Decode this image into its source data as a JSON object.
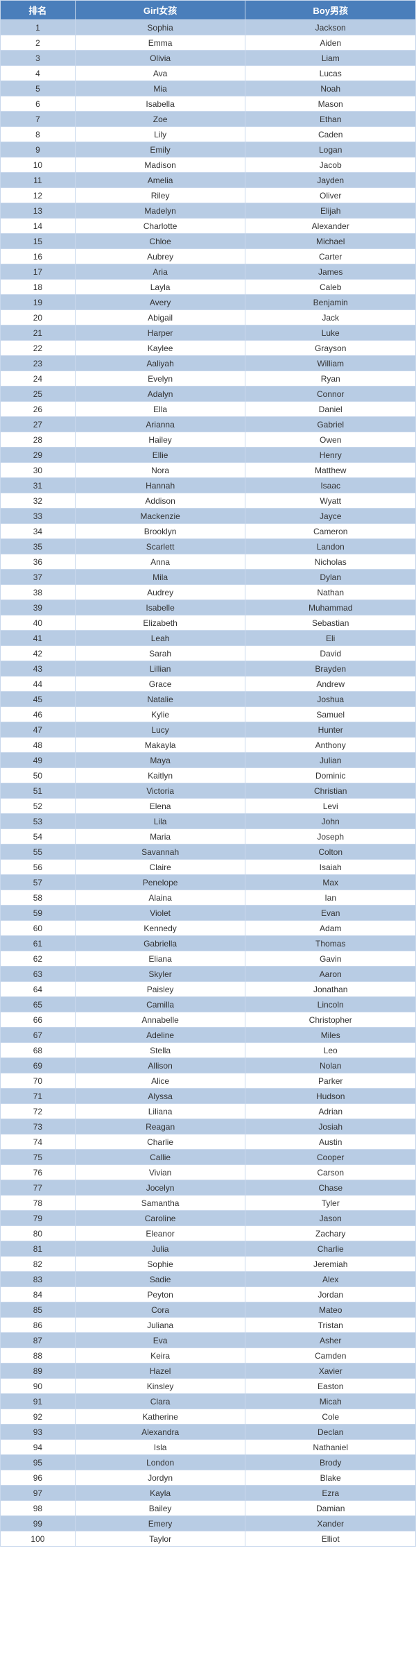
{
  "table": {
    "columns": [
      "排名",
      "Girl女孩",
      "Boy男孩"
    ],
    "header_bg": "#4a7ebb",
    "header_fg": "#ffffff",
    "row_odd_bg": "#b8cce4",
    "row_even_bg": "#ffffff",
    "border_color": "#c9d8ec",
    "rows": [
      {
        "rank": "1",
        "girl": "Sophia",
        "boy": "Jackson"
      },
      {
        "rank": "2",
        "girl": "Emma",
        "boy": "Aiden"
      },
      {
        "rank": "3",
        "girl": "Olivia",
        "boy": "Liam"
      },
      {
        "rank": "4",
        "girl": "Ava",
        "boy": "Lucas"
      },
      {
        "rank": "5",
        "girl": "Mia",
        "boy": "Noah"
      },
      {
        "rank": "6",
        "girl": "Isabella",
        "boy": "Mason"
      },
      {
        "rank": "7",
        "girl": "Zoe",
        "boy": "Ethan"
      },
      {
        "rank": "8",
        "girl": "Lily",
        "boy": "Caden"
      },
      {
        "rank": "9",
        "girl": "Emily",
        "boy": "Logan"
      },
      {
        "rank": "10",
        "girl": "Madison",
        "boy": "Jacob"
      },
      {
        "rank": "11",
        "girl": "Amelia",
        "boy": "Jayden"
      },
      {
        "rank": "12",
        "girl": "Riley",
        "boy": "Oliver"
      },
      {
        "rank": "13",
        "girl": "Madelyn",
        "boy": "Elijah"
      },
      {
        "rank": "14",
        "girl": "Charlotte",
        "boy": "Alexander"
      },
      {
        "rank": "15",
        "girl": "Chloe",
        "boy": "Michael"
      },
      {
        "rank": "16",
        "girl": "Aubrey",
        "boy": "Carter"
      },
      {
        "rank": "17",
        "girl": "Aria",
        "boy": "James"
      },
      {
        "rank": "18",
        "girl": "Layla",
        "boy": "Caleb"
      },
      {
        "rank": "19",
        "girl": "Avery",
        "boy": "Benjamin"
      },
      {
        "rank": "20",
        "girl": "Abigail",
        "boy": "Jack"
      },
      {
        "rank": "21",
        "girl": "Harper",
        "boy": "Luke"
      },
      {
        "rank": "22",
        "girl": "Kaylee",
        "boy": "Grayson"
      },
      {
        "rank": "23",
        "girl": "Aaliyah",
        "boy": "William"
      },
      {
        "rank": "24",
        "girl": "Evelyn",
        "boy": "Ryan"
      },
      {
        "rank": "25",
        "girl": "Adalyn",
        "boy": "Connor"
      },
      {
        "rank": "26",
        "girl": "Ella",
        "boy": "Daniel"
      },
      {
        "rank": "27",
        "girl": "Arianna",
        "boy": "Gabriel"
      },
      {
        "rank": "28",
        "girl": "Hailey",
        "boy": "Owen"
      },
      {
        "rank": "29",
        "girl": "Ellie",
        "boy": "Henry"
      },
      {
        "rank": "30",
        "girl": "Nora",
        "boy": "Matthew"
      },
      {
        "rank": "31",
        "girl": "Hannah",
        "boy": "Isaac"
      },
      {
        "rank": "32",
        "girl": "Addison",
        "boy": "Wyatt"
      },
      {
        "rank": "33",
        "girl": "Mackenzie",
        "boy": "Jayce"
      },
      {
        "rank": "34",
        "girl": "Brooklyn",
        "boy": "Cameron"
      },
      {
        "rank": "35",
        "girl": "Scarlett",
        "boy": "Landon"
      },
      {
        "rank": "36",
        "girl": "Anna",
        "boy": "Nicholas"
      },
      {
        "rank": "37",
        "girl": "Mila",
        "boy": "Dylan"
      },
      {
        "rank": "38",
        "girl": "Audrey",
        "boy": "Nathan"
      },
      {
        "rank": "39",
        "girl": "Isabelle",
        "boy": "Muhammad"
      },
      {
        "rank": "40",
        "girl": "Elizabeth",
        "boy": "Sebastian"
      },
      {
        "rank": "41",
        "girl": "Leah",
        "boy": "Eli"
      },
      {
        "rank": "42",
        "girl": "Sarah",
        "boy": "David"
      },
      {
        "rank": "43",
        "girl": "Lillian",
        "boy": "Brayden"
      },
      {
        "rank": "44",
        "girl": "Grace",
        "boy": "Andrew"
      },
      {
        "rank": "45",
        "girl": "Natalie",
        "boy": "Joshua"
      },
      {
        "rank": "46",
        "girl": "Kylie",
        "boy": "Samuel"
      },
      {
        "rank": "47",
        "girl": "Lucy",
        "boy": "Hunter"
      },
      {
        "rank": "48",
        "girl": "Makayla",
        "boy": "Anthony"
      },
      {
        "rank": "49",
        "girl": "Maya",
        "boy": "Julian"
      },
      {
        "rank": "50",
        "girl": "Kaitlyn",
        "boy": "Dominic"
      },
      {
        "rank": "51",
        "girl": "Victoria",
        "boy": "Christian"
      },
      {
        "rank": "52",
        "girl": "Elena",
        "boy": "Levi"
      },
      {
        "rank": "53",
        "girl": "Lila",
        "boy": "John"
      },
      {
        "rank": "54",
        "girl": "Maria",
        "boy": "Joseph"
      },
      {
        "rank": "55",
        "girl": "Savannah",
        "boy": "Colton"
      },
      {
        "rank": "56",
        "girl": "Claire",
        "boy": "Isaiah"
      },
      {
        "rank": "57",
        "girl": "Penelope",
        "boy": "Max"
      },
      {
        "rank": "58",
        "girl": "Alaina",
        "boy": "Ian"
      },
      {
        "rank": "59",
        "girl": "Violet",
        "boy": "Evan"
      },
      {
        "rank": "60",
        "girl": "Kennedy",
        "boy": "Adam"
      },
      {
        "rank": "61",
        "girl": "Gabriella",
        "boy": "Thomas"
      },
      {
        "rank": "62",
        "girl": "Eliana",
        "boy": "Gavin"
      },
      {
        "rank": "63",
        "girl": "Skyler",
        "boy": "Aaron"
      },
      {
        "rank": "64",
        "girl": "Paisley",
        "boy": "Jonathan"
      },
      {
        "rank": "65",
        "girl": "Camilla",
        "boy": "Lincoln"
      },
      {
        "rank": "66",
        "girl": "Annabelle",
        "boy": "Christopher"
      },
      {
        "rank": "67",
        "girl": "Adeline",
        "boy": "Miles"
      },
      {
        "rank": "68",
        "girl": "Stella",
        "boy": "Leo"
      },
      {
        "rank": "69",
        "girl": "Allison",
        "boy": "Nolan"
      },
      {
        "rank": "70",
        "girl": "Alice",
        "boy": "Parker"
      },
      {
        "rank": "71",
        "girl": "Alyssa",
        "boy": "Hudson"
      },
      {
        "rank": "72",
        "girl": "Liliana",
        "boy": "Adrian"
      },
      {
        "rank": "73",
        "girl": "Reagan",
        "boy": "Josiah"
      },
      {
        "rank": "74",
        "girl": "Charlie",
        "boy": "Austin"
      },
      {
        "rank": "75",
        "girl": "Callie",
        "boy": "Cooper"
      },
      {
        "rank": "76",
        "girl": "Vivian",
        "boy": "Carson"
      },
      {
        "rank": "77",
        "girl": "Jocelyn",
        "boy": "Chase"
      },
      {
        "rank": "78",
        "girl": "Samantha",
        "boy": "Tyler"
      },
      {
        "rank": "79",
        "girl": "Caroline",
        "boy": "Jason"
      },
      {
        "rank": "80",
        "girl": "Eleanor",
        "boy": "Zachary"
      },
      {
        "rank": "81",
        "girl": "Julia",
        "boy": "Charlie"
      },
      {
        "rank": "82",
        "girl": "Sophie",
        "boy": "Jeremiah"
      },
      {
        "rank": "83",
        "girl": "Sadie",
        "boy": "Alex"
      },
      {
        "rank": "84",
        "girl": "Peyton",
        "boy": "Jordan"
      },
      {
        "rank": "85",
        "girl": "Cora",
        "boy": "Mateo"
      },
      {
        "rank": "86",
        "girl": "Juliana",
        "boy": "Tristan"
      },
      {
        "rank": "87",
        "girl": "Eva",
        "boy": "Asher"
      },
      {
        "rank": "88",
        "girl": "Keira",
        "boy": "Camden"
      },
      {
        "rank": "89",
        "girl": "Hazel",
        "boy": "Xavier"
      },
      {
        "rank": "90",
        "girl": "Kinsley",
        "boy": "Easton"
      },
      {
        "rank": "91",
        "girl": "Clara",
        "boy": "Micah"
      },
      {
        "rank": "92",
        "girl": "Katherine",
        "boy": "Cole"
      },
      {
        "rank": "93",
        "girl": "Alexandra",
        "boy": "Declan"
      },
      {
        "rank": "94",
        "girl": "Isla",
        "boy": "Nathaniel"
      },
      {
        "rank": "95",
        "girl": "London",
        "boy": "Brody"
      },
      {
        "rank": "96",
        "girl": "Jordyn",
        "boy": "Blake"
      },
      {
        "rank": "97",
        "girl": "Kayla",
        "boy": "Ezra"
      },
      {
        "rank": "98",
        "girl": "Bailey",
        "boy": "Damian"
      },
      {
        "rank": "99",
        "girl": "Emery",
        "boy": "Xander"
      },
      {
        "rank": "100",
        "girl": "Taylor",
        "boy": "Elliot"
      }
    ]
  }
}
